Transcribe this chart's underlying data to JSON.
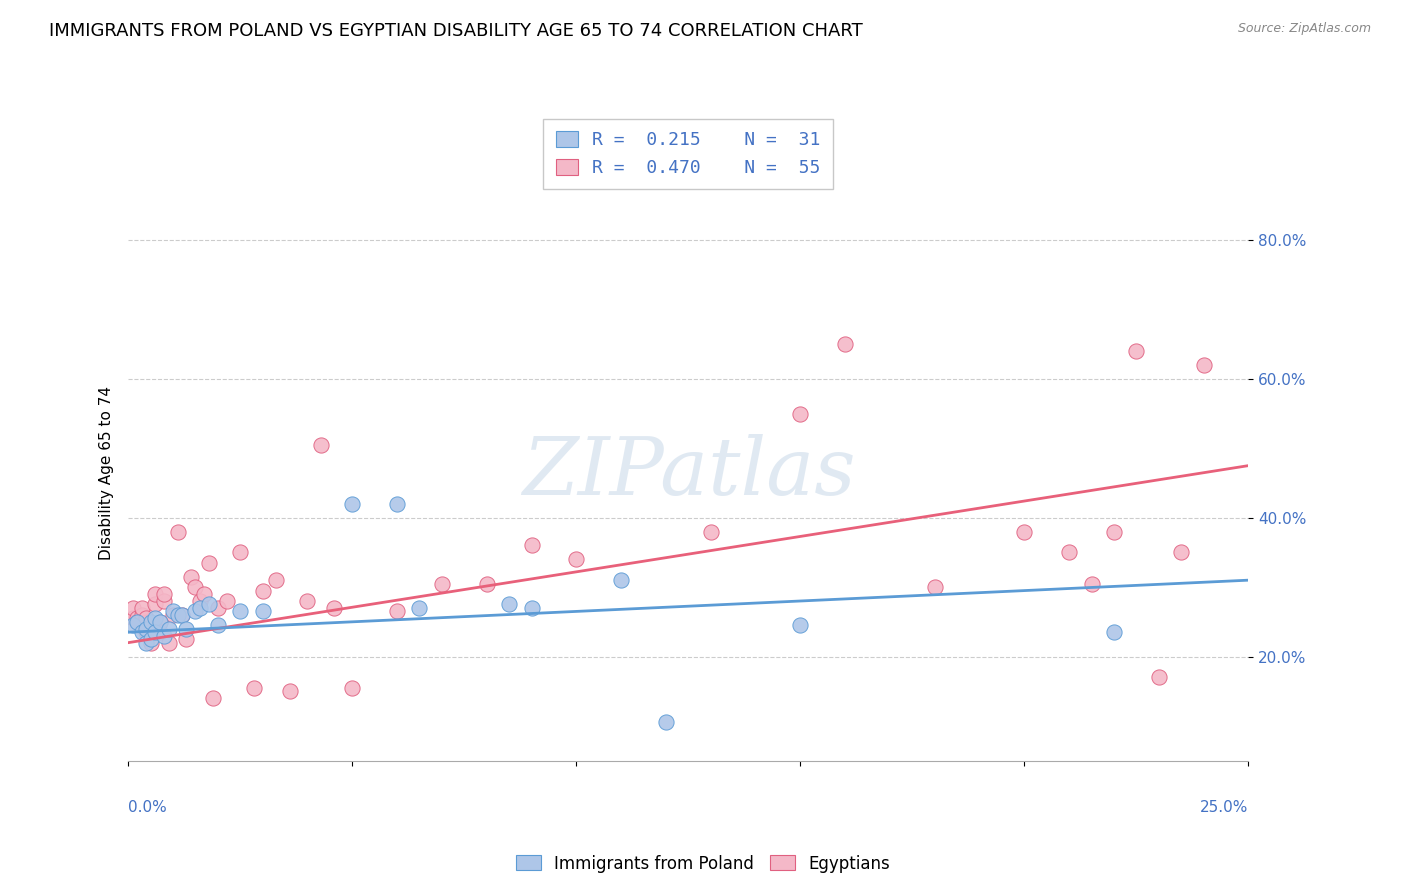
{
  "title": "IMMIGRANTS FROM POLAND VS EGYPTIAN DISABILITY AGE 65 TO 74 CORRELATION CHART",
  "source": "Source: ZipAtlas.com",
  "ylabel": "Disability Age 65 to 74",
  "ytick_vals": [
    0.2,
    0.4,
    0.6,
    0.8
  ],
  "ytick_labels": [
    "20.0%",
    "40.0%",
    "60.0%",
    "80.0%"
  ],
  "xlim": [
    0.0,
    0.25
  ],
  "ylim": [
    0.05,
    0.88
  ],
  "watermark": "ZIPatlas",
  "legend_line1": "R =  0.215    N =  31",
  "legend_line2": "R =  0.470    N =  55",
  "color_poland_fill": "#aec6e8",
  "color_poland_edge": "#5b9bd5",
  "color_egypt_fill": "#f4b8c8",
  "color_egypt_edge": "#e06080",
  "color_poland_line": "#5b9bd5",
  "color_egypt_line": "#e8607a",
  "color_text_blue": "#4472c4",
  "color_grid": "#cccccc",
  "poland_x": [
    0.001,
    0.002,
    0.003,
    0.004,
    0.004,
    0.005,
    0.005,
    0.006,
    0.006,
    0.007,
    0.008,
    0.009,
    0.01,
    0.011,
    0.012,
    0.013,
    0.015,
    0.016,
    0.018,
    0.02,
    0.025,
    0.03,
    0.05,
    0.06,
    0.065,
    0.085,
    0.09,
    0.11,
    0.12,
    0.15,
    0.22
  ],
  "poland_y": [
    0.245,
    0.25,
    0.235,
    0.24,
    0.22,
    0.25,
    0.225,
    0.255,
    0.235,
    0.25,
    0.23,
    0.24,
    0.265,
    0.26,
    0.26,
    0.24,
    0.265,
    0.27,
    0.275,
    0.245,
    0.265,
    0.265,
    0.42,
    0.42,
    0.27,
    0.275,
    0.27,
    0.31,
    0.105,
    0.245,
    0.235
  ],
  "egypt_x": [
    0.001,
    0.001,
    0.002,
    0.002,
    0.003,
    0.003,
    0.004,
    0.004,
    0.005,
    0.005,
    0.006,
    0.006,
    0.007,
    0.007,
    0.008,
    0.008,
    0.009,
    0.01,
    0.011,
    0.012,
    0.013,
    0.014,
    0.015,
    0.016,
    0.017,
    0.018,
    0.019,
    0.02,
    0.022,
    0.025,
    0.028,
    0.03,
    0.033,
    0.036,
    0.04,
    0.043,
    0.046,
    0.05,
    0.06,
    0.07,
    0.08,
    0.09,
    0.1,
    0.13,
    0.15,
    0.16,
    0.18,
    0.2,
    0.21,
    0.215,
    0.22,
    0.225,
    0.23,
    0.235,
    0.24
  ],
  "egypt_y": [
    0.255,
    0.27,
    0.255,
    0.25,
    0.26,
    0.27,
    0.235,
    0.255,
    0.235,
    0.22,
    0.275,
    0.29,
    0.25,
    0.235,
    0.28,
    0.29,
    0.22,
    0.26,
    0.38,
    0.26,
    0.225,
    0.315,
    0.3,
    0.28,
    0.29,
    0.335,
    0.14,
    0.27,
    0.28,
    0.35,
    0.155,
    0.295,
    0.31,
    0.15,
    0.28,
    0.505,
    0.27,
    0.155,
    0.265,
    0.305,
    0.305,
    0.36,
    0.34,
    0.38,
    0.55,
    0.65,
    0.3,
    0.38,
    0.35,
    0.305,
    0.38,
    0.64,
    0.17,
    0.35,
    0.62
  ],
  "poland_trend_x": [
    0.0,
    0.25
  ],
  "poland_trend_y": [
    0.235,
    0.31
  ],
  "egypt_trend_x": [
    0.0,
    0.25
  ],
  "egypt_trend_y": [
    0.22,
    0.475
  ],
  "bg_color": "#ffffff",
  "title_fontsize": 13,
  "label_fontsize": 11,
  "tick_fontsize": 11,
  "legend_fontsize": 13,
  "marker_size": 120
}
